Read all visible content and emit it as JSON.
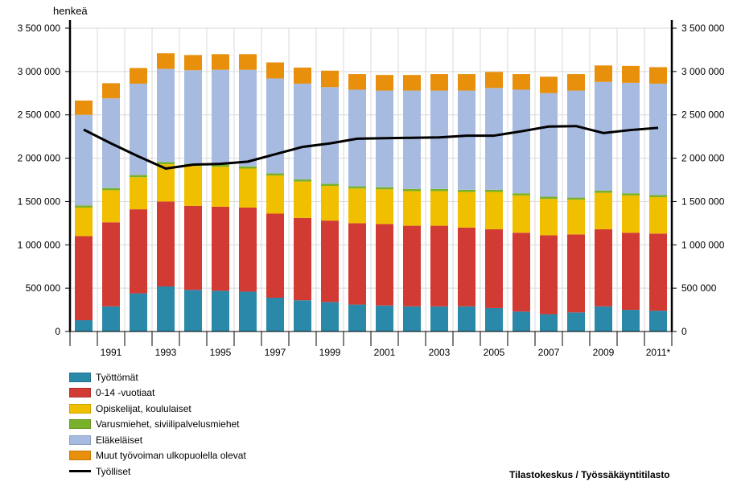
{
  "chart_data": {
    "type": "bar",
    "stacked": true,
    "unit_label": "henkeä",
    "years": [
      1990,
      1991,
      1992,
      1993,
      1994,
      1995,
      1996,
      1997,
      1998,
      1999,
      2000,
      2001,
      2002,
      2003,
      2004,
      2005,
      2006,
      2007,
      2008,
      2009,
      2010,
      2011
    ],
    "x_tick_labels": [
      "",
      "1991",
      "",
      "1993",
      "",
      "1995",
      "",
      "1997",
      "",
      "1999",
      "",
      "2001",
      "",
      "2003",
      "",
      "2005",
      "",
      "2007",
      "",
      "2009",
      "",
      "2011*"
    ],
    "ylim": [
      0,
      3500000
    ],
    "y_ticks": [
      0,
      500000,
      1000000,
      1500000,
      2000000,
      2500000,
      3000000,
      3500000
    ],
    "y_tick_labels": [
      "0",
      "500 000",
      "1 000 000",
      "1 500 000",
      "2 000 000",
      "2 500 000",
      "3 000 000",
      "3 500 000"
    ],
    "series": [
      {
        "name": "Työttömät",
        "color": "#2a88a8",
        "values": [
          130000,
          290000,
          440000,
          520000,
          480000,
          470000,
          460000,
          390000,
          360000,
          340000,
          310000,
          300000,
          290000,
          290000,
          290000,
          270000,
          230000,
          200000,
          220000,
          290000,
          250000,
          240000
        ]
      },
      {
        "name": "0-14 -vuotiaat",
        "color": "#d23a34",
        "values": [
          970000,
          970000,
          970000,
          980000,
          970000,
          970000,
          970000,
          970000,
          950000,
          940000,
          940000,
          940000,
          930000,
          930000,
          910000,
          910000,
          910000,
          910000,
          900000,
          890000,
          890000,
          890000
        ]
      },
      {
        "name": "Opiskelijat, koululaiset",
        "color": "#f0c000",
        "values": [
          330000,
          370000,
          370000,
          430000,
          460000,
          460000,
          450000,
          440000,
          420000,
          400000,
          400000,
          400000,
          400000,
          400000,
          410000,
          430000,
          430000,
          420000,
          400000,
          420000,
          430000,
          420000
        ]
      },
      {
        "name": "Varusmiehet, siviilipalvelusmiehet",
        "color": "#7ab12a",
        "values": [
          25000,
          25000,
          25000,
          25000,
          25000,
          25000,
          25000,
          25000,
          25000,
          25000,
          25000,
          25000,
          25000,
          25000,
          25000,
          25000,
          25000,
          25000,
          25000,
          25000,
          25000,
          25000
        ]
      },
      {
        "name": "Eläkeläiset",
        "color": "#a7bbe0",
        "values": [
          1045000,
          1035000,
          1055000,
          1075000,
          1080000,
          1095000,
          1115000,
          1095000,
          1105000,
          1115000,
          1115000,
          1115000,
          1135000,
          1135000,
          1145000,
          1175000,
          1195000,
          1195000,
          1235000,
          1255000,
          1275000,
          1285000
        ]
      },
      {
        "name": "Muut työvoiman ulkopuolella olevat",
        "color": "#e88f0c",
        "values": [
          165000,
          175000,
          180000,
          180000,
          175000,
          180000,
          180000,
          185000,
          185000,
          190000,
          180000,
          180000,
          180000,
          190000,
          190000,
          185000,
          180000,
          190000,
          190000,
          190000,
          195000,
          190000
        ]
      }
    ],
    "line_series": {
      "name": "Työlliset",
      "color": "#000000",
      "values": [
        2330000,
        2170000,
        2020000,
        1880000,
        1925000,
        1935000,
        1960000,
        2045000,
        2130000,
        2170000,
        2225000,
        2230000,
        2235000,
        2240000,
        2260000,
        2260000,
        2310000,
        2365000,
        2370000,
        2290000,
        2325000,
        2350000
      ]
    },
    "source": "Tilastokeskus / Työssäkäyntitilasto"
  }
}
